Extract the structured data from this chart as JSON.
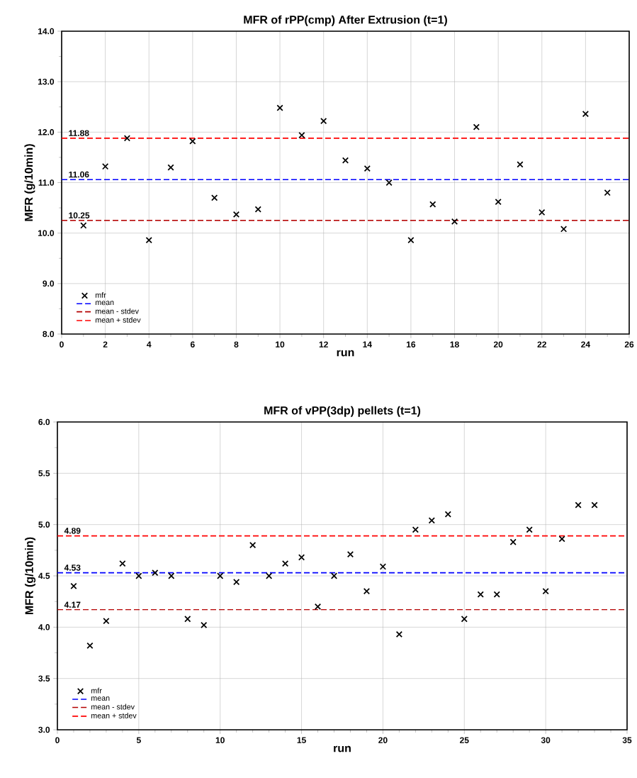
{
  "chart_data": [
    {
      "type": "scatter",
      "title": "MFR of rPP(cmp) After Extrusion (t=1)",
      "xlabel": "run",
      "ylabel": "MFR (g/10min)",
      "x": [
        1,
        2,
        3,
        4,
        5,
        6,
        7,
        8,
        9,
        10,
        11,
        12,
        13,
        14,
        15,
        16,
        17,
        18,
        19,
        20,
        21,
        22,
        23,
        24,
        25
      ],
      "series": [
        {
          "name": "mfr",
          "color": "#000000",
          "values": [
            10.15,
            11.32,
            11.88,
            9.86,
            11.3,
            11.82,
            10.7,
            10.37,
            10.47,
            12.48,
            11.94,
            12.22,
            11.44,
            11.28,
            11.0,
            9.86,
            10.57,
            10.23,
            12.1,
            10.62,
            11.36,
            10.41,
            10.08,
            12.36,
            10.8
          ]
        }
      ],
      "ref_lines": [
        {
          "axis": "y",
          "value": 11.06,
          "label": "mean",
          "color": "#0000ff",
          "line_style": "dashed"
        },
        {
          "axis": "y",
          "value": 10.25,
          "label": "mean - stdev",
          "color": "#b40000",
          "line_style": "dashed"
        },
        {
          "axis": "y",
          "value": 11.88,
          "label": "mean + stdev",
          "color": "#ff0000",
          "line_style": "dashed"
        }
      ],
      "annotations": [
        {
          "text": "11.06",
          "y": 11.06
        },
        {
          "text": "10.25",
          "y": 10.25
        },
        {
          "text": "11.88",
          "y": 11.88
        }
      ],
      "xlim": [
        0,
        26
      ],
      "xticks": [
        0,
        2,
        4,
        6,
        8,
        10,
        12,
        14,
        16,
        18,
        20,
        22,
        24,
        26
      ],
      "ylim": [
        8,
        14
      ],
      "yticks": [
        {
          "value": 8,
          "label": "8.0"
        },
        {
          "value": 9,
          "label": "9.0"
        },
        {
          "value": 10,
          "label": "10.0"
        },
        {
          "value": 11,
          "label": "11.0"
        },
        {
          "value": 12,
          "label": "12.0"
        },
        {
          "value": 13,
          "label": "13.0"
        },
        {
          "value": 14,
          "label": "14.0"
        }
      ],
      "grid": true,
      "legend": "bottom left",
      "marker": "cross"
    },
    {
      "type": "scatter",
      "title": "MFR of vPP(3dp) pellets (t=1)",
      "xlabel": "run",
      "ylabel": "MFR (g/10min)",
      "x": [
        1,
        2,
        3,
        4,
        5,
        6,
        7,
        8,
        9,
        10,
        11,
        12,
        13,
        14,
        15,
        16,
        17,
        18,
        19,
        20,
        21,
        22,
        23,
        24,
        25,
        26,
        27,
        28,
        29,
        30,
        31,
        32,
        33
      ],
      "series": [
        {
          "name": "mfr",
          "color": "#000000",
          "values": [
            4.4,
            3.82,
            4.06,
            4.62,
            4.5,
            4.53,
            4.5,
            4.08,
            4.02,
            4.5,
            4.44,
            4.8,
            4.5,
            4.62,
            4.68,
            4.2,
            4.5,
            4.71,
            4.35,
            4.59,
            3.93,
            4.95,
            5.04,
            5.1,
            4.08,
            4.32,
            4.32,
            4.83,
            4.95,
            4.35,
            4.86,
            5.19,
            5.19
          ]
        }
      ],
      "ref_lines": [
        {
          "axis": "y",
          "value": 4.53,
          "label": "mean",
          "color": "#0000ff",
          "line_style": "dashed"
        },
        {
          "axis": "y",
          "value": 4.17,
          "label": "mean - stdev",
          "color": "#b40000",
          "line_style": "dashed"
        },
        {
          "axis": "y",
          "value": 4.89,
          "label": "mean + stdev",
          "color": "#ff0000",
          "line_style": "dashed"
        }
      ],
      "annotations": [
        {
          "text": "4.53",
          "y": 4.53
        },
        {
          "text": "4.17",
          "y": 4.17
        },
        {
          "text": "4.89",
          "y": 4.89
        }
      ],
      "xlim": [
        0,
        35
      ],
      "xticks": [
        0,
        5,
        10,
        15,
        20,
        25,
        30,
        35
      ],
      "ylim": [
        3,
        6
      ],
      "yticks": [
        {
          "value": 3,
          "label": "3.0"
        },
        {
          "value": 3.5,
          "label": "3.5"
        },
        {
          "value": 4,
          "label": "4.0"
        },
        {
          "value": 4.5,
          "label": "4.5"
        },
        {
          "value": 5,
          "label": "5.0"
        },
        {
          "value": 5.5,
          "label": "5.5"
        },
        {
          "value": 6,
          "label": "6.0"
        }
      ],
      "grid": true,
      "legend": "bottom left",
      "marker": "cross"
    }
  ]
}
